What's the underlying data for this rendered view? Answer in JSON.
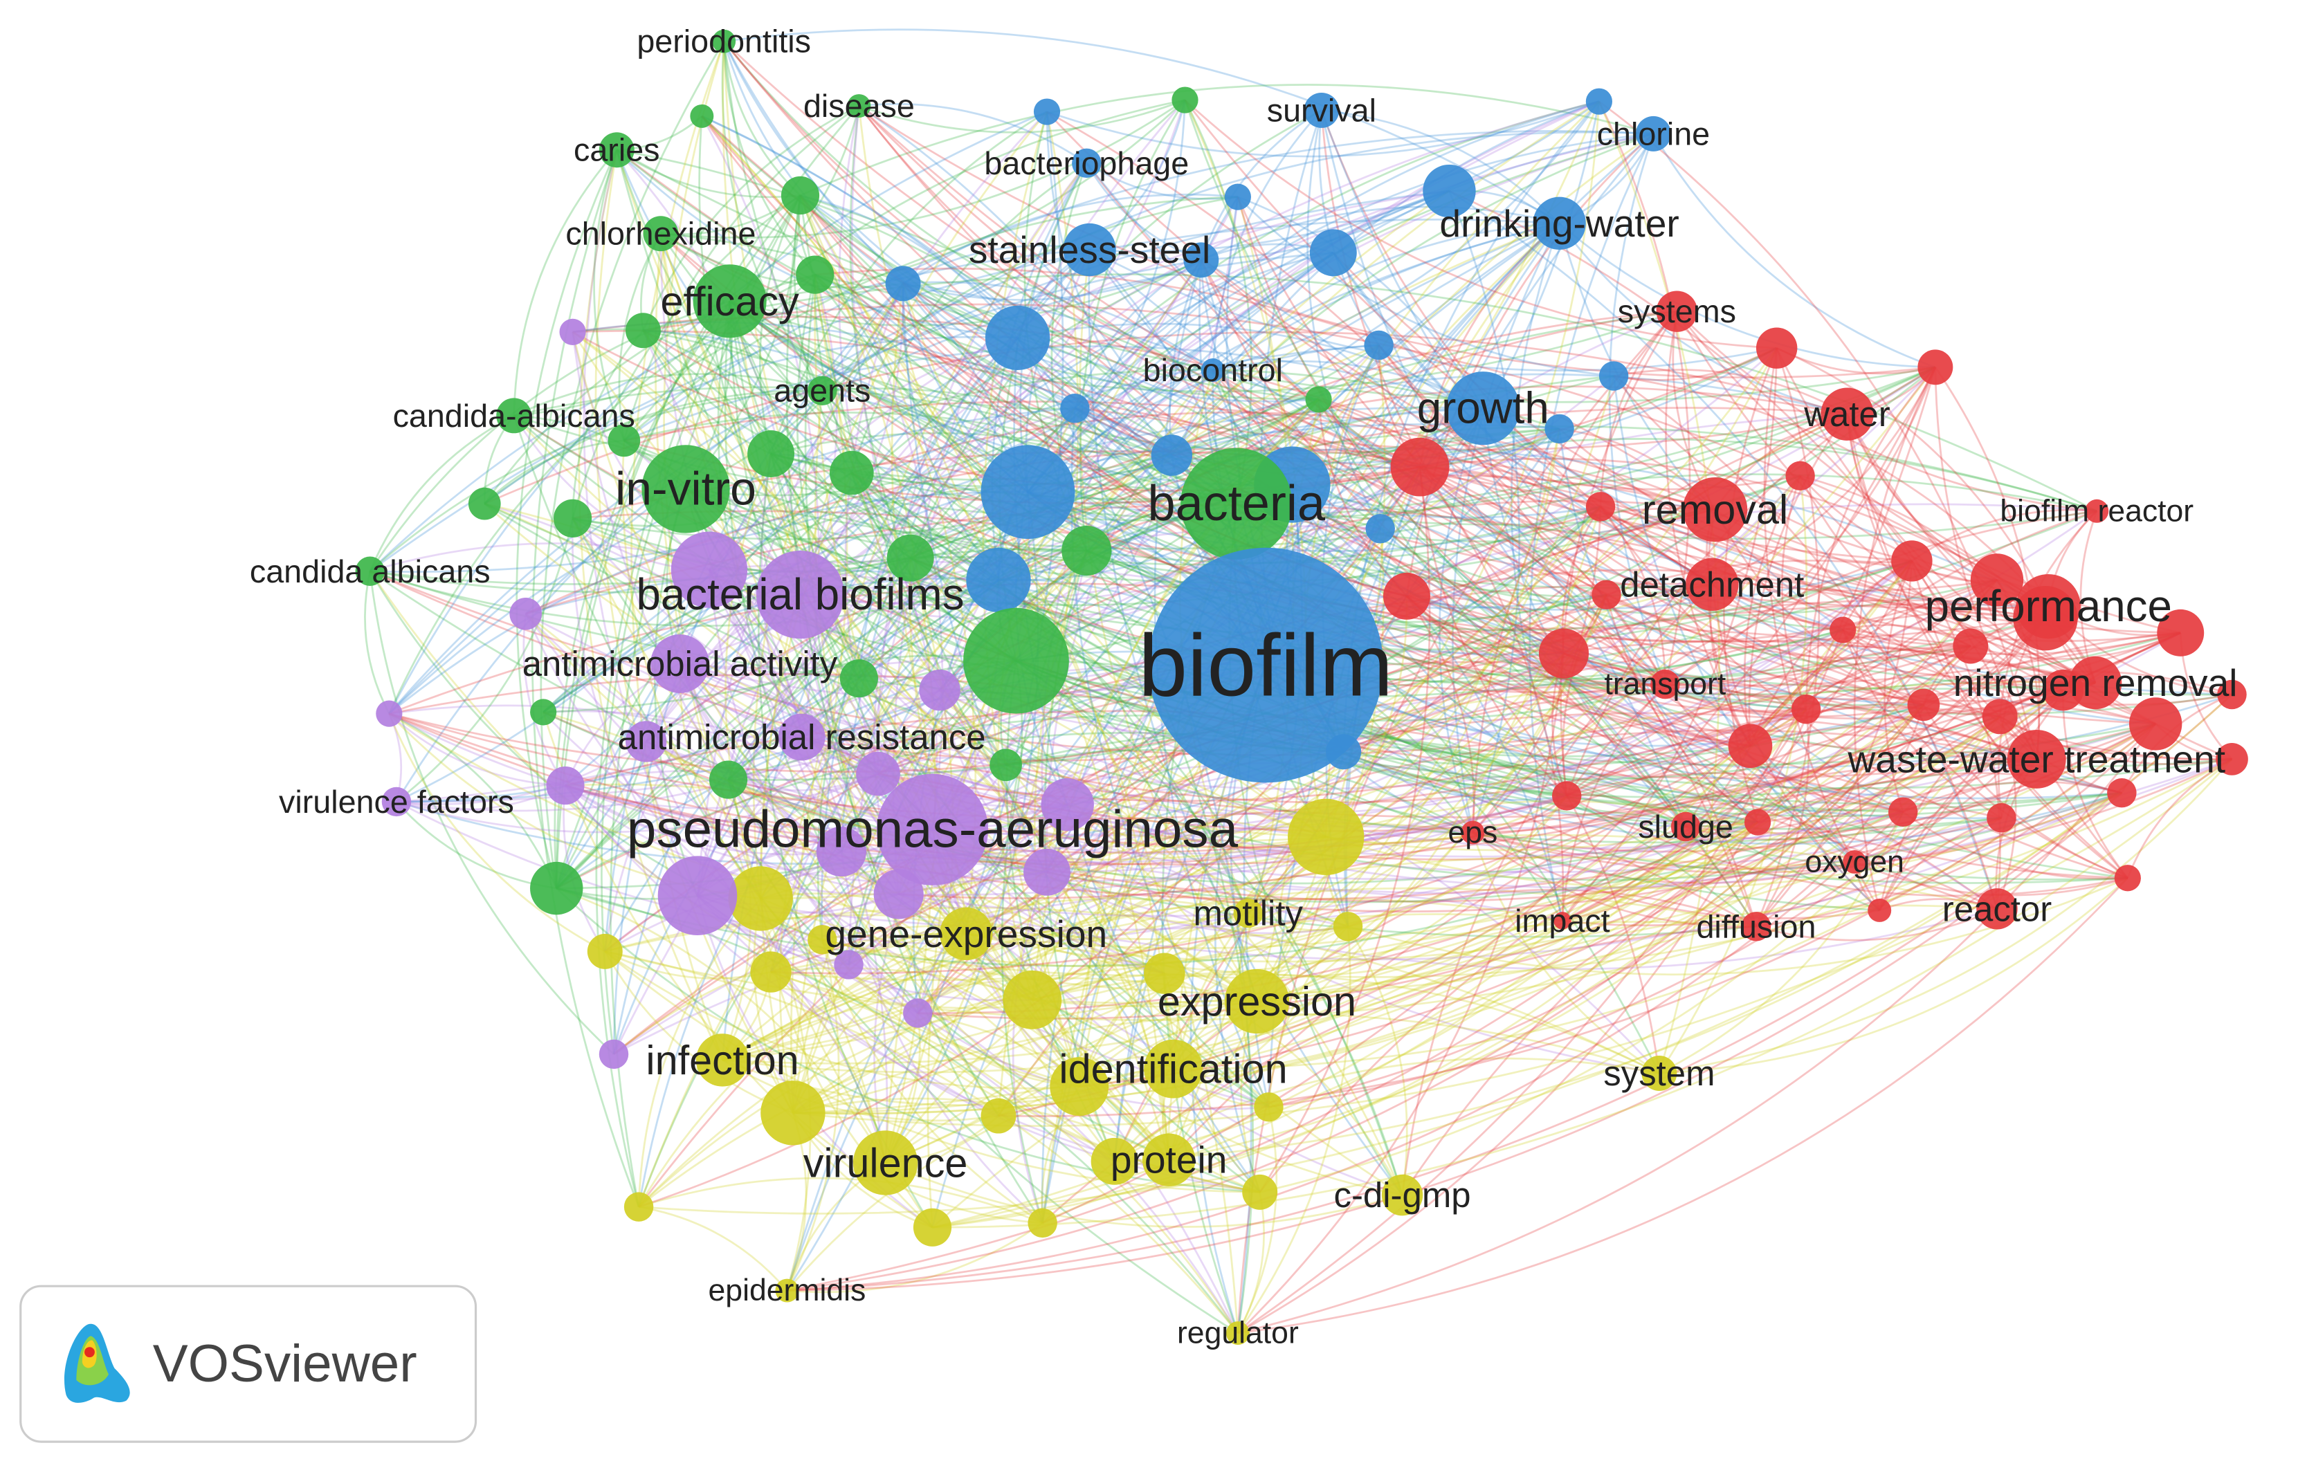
{
  "nodes": [
    {
      "label": "biofilm"
    },
    {
      "label": "bacteria"
    },
    {
      "label": "pseudomonas-aeruginosa"
    },
    {
      "label": "bacterial biofilms"
    },
    {
      "label": "in-vitro"
    },
    {
      "label": "efficacy"
    },
    {
      "label": "growth"
    },
    {
      "label": "stainless-steel"
    },
    {
      "label": "drinking-water"
    },
    {
      "label": "bacteriophage"
    },
    {
      "label": "survival"
    },
    {
      "label": "chlorine"
    },
    {
      "label": "biocontrol"
    },
    {
      "label": "periodontitis"
    },
    {
      "label": "disease"
    },
    {
      "label": "caries"
    },
    {
      "label": "chlorhexidine"
    },
    {
      "label": "agents"
    },
    {
      "label": "candida-albicans"
    },
    {
      "label": "candida albicans"
    },
    {
      "label": "antimicrobial activity"
    },
    {
      "label": "antimicrobial resistance"
    },
    {
      "label": "virulence factors"
    },
    {
      "label": "systems"
    },
    {
      "label": "water"
    },
    {
      "label": "removal"
    },
    {
      "label": "biofilm reactor"
    },
    {
      "label": "detachment"
    },
    {
      "label": "performance"
    },
    {
      "label": "transport"
    },
    {
      "label": "nitrogen removal"
    },
    {
      "label": "waste-water treatment"
    },
    {
      "label": "eps"
    },
    {
      "label": "sludge"
    },
    {
      "label": "oxygen"
    },
    {
      "label": "impact"
    },
    {
      "label": "diffusion"
    },
    {
      "label": "reactor"
    },
    {
      "label": "motility"
    },
    {
      "label": "gene-expression"
    },
    {
      "label": "expression"
    },
    {
      "label": "infection"
    },
    {
      "label": "identification"
    },
    {
      "label": "system"
    },
    {
      "label": "virulence"
    },
    {
      "label": "protein"
    },
    {
      "label": "c-di-gmp"
    },
    {
      "label": "epidermidis"
    },
    {
      "label": "regulator"
    }
  ],
  "logo": {
    "text": "VOSviewer"
  }
}
